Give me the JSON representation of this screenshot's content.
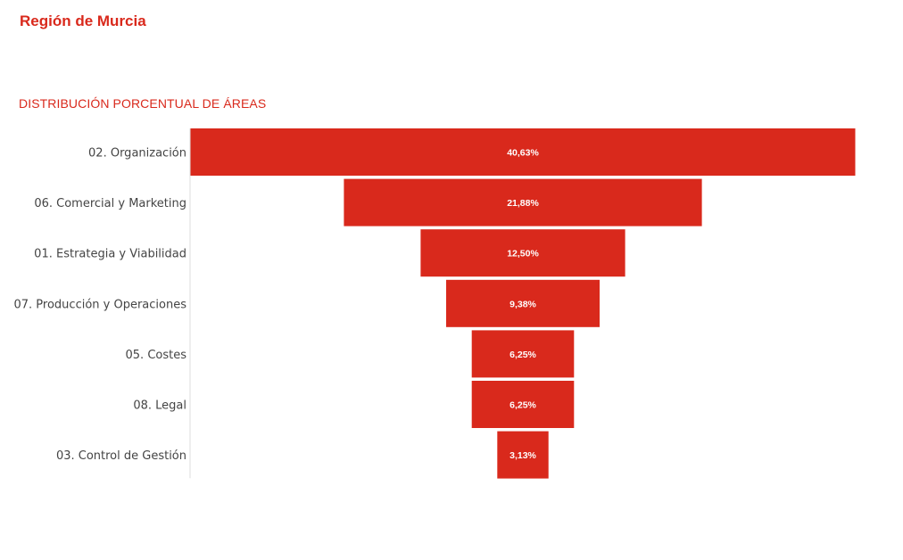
{
  "header": {
    "title": "Región de Murcia"
  },
  "colors": {
    "accent": "#d9291c",
    "bar": "#d9291c",
    "axis": "#dddddd",
    "label": "#444444"
  },
  "chart_data": {
    "type": "bar",
    "subtype": "funnel",
    "title": "DISTRIBUCIÓN PORCENTUAL DE ÁREAS",
    "categories": [
      "02. Organización",
      "06. Comercial y Marketing",
      "01. Estrategia y Viabilidad",
      "07. Producción y Operaciones",
      "05. Costes",
      "08. Legal",
      "03. Control de Gestión"
    ],
    "values": [
      40.63,
      21.88,
      12.5,
      9.38,
      6.25,
      6.25,
      3.13
    ],
    "value_labels": [
      "40,63%",
      "21,88%",
      "12,50%",
      "9,38%",
      "6,25%",
      "6,25%",
      "3,13%"
    ],
    "unit": "%",
    "legend": "none",
    "grid": false
  }
}
